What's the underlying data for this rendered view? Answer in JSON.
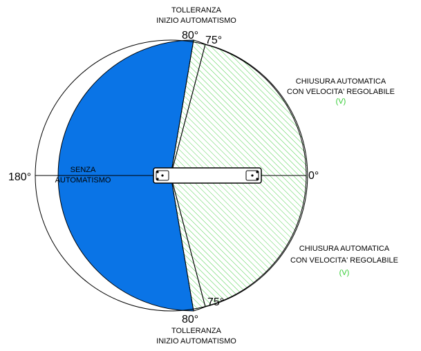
{
  "colors": {
    "blue_sector": "#0a74e6",
    "green_hatch": "#4fd14f",
    "outline": "#000000",
    "v_label": "#33cc33"
  },
  "labels": {
    "tolerance_top_line1": "TOLLERANZA",
    "tolerance_top_line2": "INIZIO AUTOMATISMO",
    "tolerance_bottom_line1": "TOLLERANZA",
    "tolerance_bottom_line2": "INIZIO AUTOMATISMO",
    "auto_top_line1": "CHIUSURA AUTOMATICA",
    "auto_top_line2": "CON VELOCITA' REGOLABILE",
    "auto_top_v": "(V)",
    "auto_bottom_line1": "CHIUSURA AUTOMATICA",
    "auto_bottom_line2": "CON VELOCITA' REGOLABILE",
    "auto_bottom_v": "(V)",
    "no_auto_line1": "SENZA",
    "no_auto_line2": "AUTOMATISMO"
  },
  "angles": {
    "top_80": "80°",
    "top_75": "75°",
    "bottom_80": "80°",
    "bottom_75": "75°",
    "right_0": "0°",
    "left_180": "180°"
  }
}
